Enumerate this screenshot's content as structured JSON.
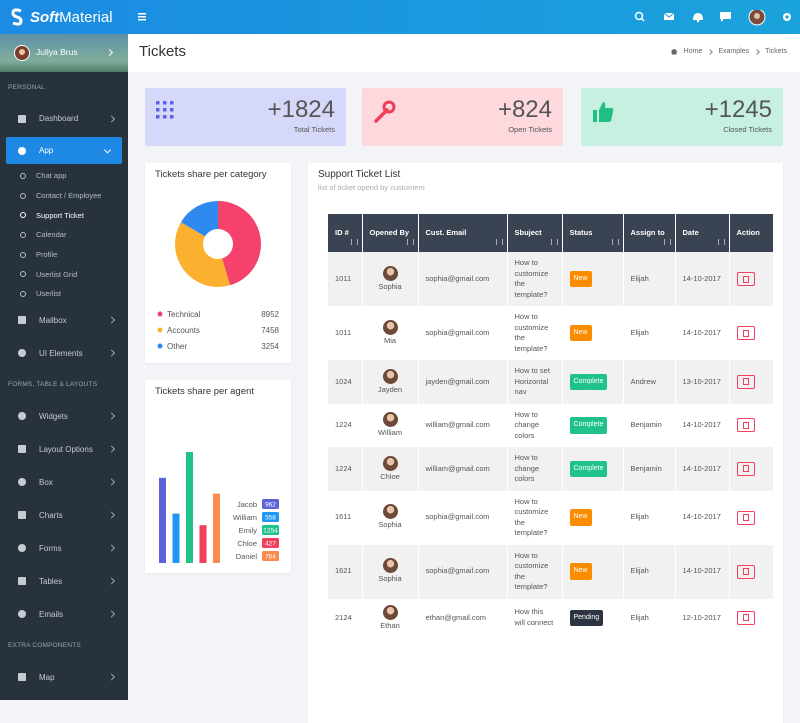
{
  "header": {
    "brand_bold": "Soft",
    "brand_rest": "Material"
  },
  "sidebar": {
    "user": "Jullya Brus",
    "sections": [
      {
        "title": "PERSONAL",
        "items": [
          {
            "label": "Dashboard"
          },
          {
            "label": "App",
            "active": true,
            "children": [
              "Chat app",
              "Contact / Employee",
              "Support Ticket",
              "Calendar",
              "Profile",
              "Userlist Grid",
              "Userlist"
            ],
            "active_child": 2
          },
          {
            "label": "Mailbox"
          },
          {
            "label": "UI Elements"
          }
        ]
      },
      {
        "title": "FORMS, TABLE & LAYOUTS",
        "items": [
          {
            "label": "Widgets"
          },
          {
            "label": "Layout Options"
          },
          {
            "label": "Box"
          },
          {
            "label": "Charts"
          },
          {
            "label": "Forms"
          },
          {
            "label": "Tables"
          },
          {
            "label": "Emails"
          }
        ]
      },
      {
        "title": "EXTRA COMPONENTS",
        "items": [
          {
            "label": "Map"
          }
        ]
      }
    ]
  },
  "page": {
    "title": "Tickets",
    "breadcrumb": [
      "Home",
      "Examples",
      "Tickets"
    ]
  },
  "stats": [
    {
      "value": "+1824",
      "label": "Total Tickets",
      "bg": "#d5d8f8",
      "color": "#5b61e4"
    },
    {
      "value": "+824",
      "label": "Open Tickets",
      "bg": "#fdd8dd",
      "color": "#ee3e5a"
    },
    {
      "value": "+1245",
      "label": "Closed Tickets",
      "bg": "#c7f0e0",
      "color": "#1fbf86"
    }
  ],
  "chart_data": [
    {
      "type": "pie",
      "title": "Tickets share per category",
      "donut": true,
      "categories": [
        "Technical",
        "Accounts",
        "Other"
      ],
      "values": [
        8952,
        7458,
        3254
      ],
      "colors": [
        "#f5426c",
        "#fbb12f",
        "#2f8af0"
      ]
    },
    {
      "type": "bar",
      "title": "Tickets share per agent",
      "categories": [
        "Jacob",
        "William",
        "Emily",
        "Chloe",
        "Daniel"
      ],
      "values": [
        962,
        558,
        1254,
        427,
        784
      ],
      "colors": [
        "#5c63d9",
        "#2196f3",
        "#22c38a",
        "#f23f5e",
        "#fb8b4c"
      ]
    }
  ],
  "table": {
    "title": "Support Ticket List",
    "subtitle": "list of ticket opend by customers",
    "headers": [
      "ID #",
      "Opened By",
      "Cust. Email",
      "Sbuject",
      "Status",
      "Assign to",
      "Date",
      "Action"
    ],
    "rows": [
      {
        "id": "1011",
        "name": "Sophia",
        "email": "sophia@gmail.com",
        "subject": "How to customize the template?",
        "status": "New",
        "status_color": "#fb8c00",
        "assign": "Elijah",
        "date": "14-10-2017"
      },
      {
        "id": "1011",
        "name": "Mia",
        "email": "sophia@gmail.com",
        "subject": "How to customize the template?",
        "status": "New",
        "status_color": "#fb8c00",
        "assign": "Elijah",
        "date": "14-10-2017"
      },
      {
        "id": "1024",
        "name": "Jayden",
        "email": "jayden@gmail.com",
        "subject": "How to set Horizontal nav",
        "status": "Complete",
        "status_color": "#1fc38a",
        "assign": "Andrew",
        "date": "13-10-2017"
      },
      {
        "id": "1224",
        "name": "William",
        "email": "william@gmail.com",
        "subject": "How to change colors",
        "status": "Complete",
        "status_color": "#1fc38a",
        "assign": "Benjamin",
        "date": "14-10-2017"
      },
      {
        "id": "1224",
        "name": "Chloe",
        "email": "william@gmail.com",
        "subject": "How to change colors",
        "status": "Complete",
        "status_color": "#1fc38a",
        "assign": "Benjamin",
        "date": "14-10-2017"
      },
      {
        "id": "1611",
        "name": "Sophia",
        "email": "sophia@gmail.com",
        "subject": "How to customize the template?",
        "status": "New",
        "status_color": "#fb8c00",
        "assign": "Elijah",
        "date": "14-10-2017"
      },
      {
        "id": "1621",
        "name": "Sophia",
        "email": "sophia@gmail.com",
        "subject": "How to customize the template?",
        "status": "New",
        "status_color": "#fb8c00",
        "assign": "Elijah",
        "date": "14-10-2017"
      },
      {
        "id": "2124",
        "name": "Ethan",
        "email": "ethan@gmail.com",
        "subject": "How this will connect",
        "status": "Pending",
        "status_color": "#2b3440",
        "assign": "Elijah",
        "date": "12-10-2017"
      }
    ]
  }
}
